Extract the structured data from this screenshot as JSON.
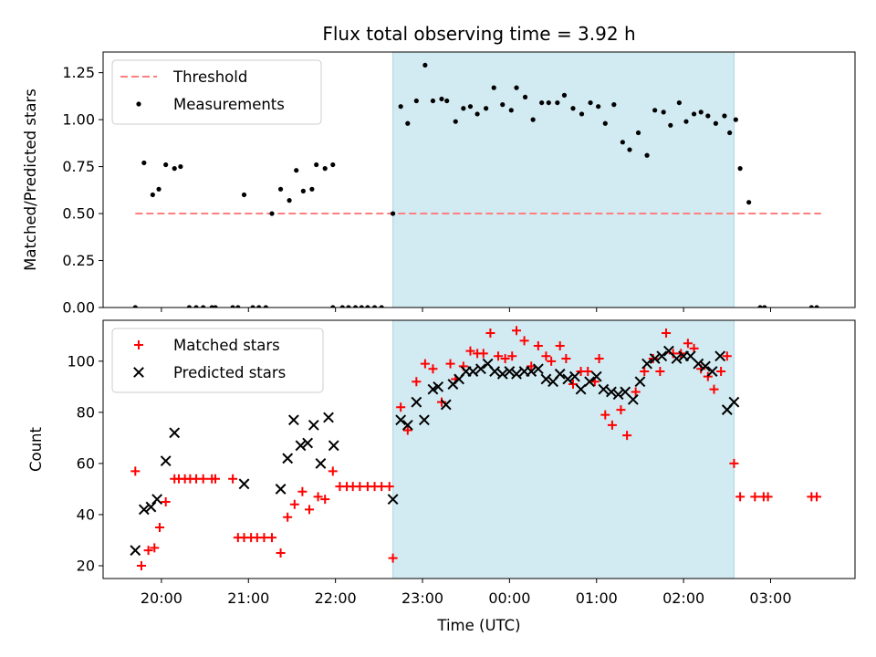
{
  "chart_data": {
    "title": "Flux total observing time = 3.92 h",
    "xlabel": "Time (UTC)",
    "x_ticks": [
      "20:00",
      "21:00",
      "22:00",
      "23:00",
      "00:00",
      "01:00",
      "02:00",
      "03:00"
    ],
    "x_tick_hours": [
      20,
      21,
      22,
      23,
      24,
      25,
      26,
      27
    ],
    "xlim": [
      19.33,
      27.97
    ],
    "shaded_span": {
      "start": 22.66,
      "end": 26.58,
      "color": "#add8e6"
    },
    "panels": [
      {
        "type": "scatter",
        "ylabel": "Matched/Predicted stars",
        "ylim": [
          0,
          1.36
        ],
        "yticks": [
          0.0,
          0.25,
          0.5,
          0.75,
          1.0,
          1.25
        ],
        "ytick_labels": [
          "0.00",
          "0.25",
          "0.50",
          "0.75",
          "1.00",
          "1.25"
        ],
        "legend": {
          "placement": "top-left",
          "entries": [
            "Threshold",
            "Measurements"
          ]
        },
        "series": [
          {
            "name": "Threshold",
            "kind": "line",
            "style": "dashed",
            "color": "#ff7f7f",
            "x": [
              19.7,
              27.58
            ],
            "y": [
              0.5,
              0.5
            ]
          },
          {
            "name": "Measurements",
            "kind": "dot",
            "color": "#000000",
            "x": [
              19.7,
              19.8,
              19.9,
              19.97,
              20.05,
              20.15,
              20.22,
              20.32,
              20.4,
              20.48,
              20.58,
              20.62,
              20.82,
              20.88,
              20.95,
              21.05,
              21.12,
              21.2,
              21.27,
              21.37,
              21.47,
              21.55,
              21.63,
              21.73,
              21.78,
              21.88,
              21.97,
              21.97,
              22.08,
              22.15,
              22.23,
              22.3,
              22.37,
              22.45,
              22.53,
              22.66,
              22.75,
              22.83,
              22.93,
              23.03,
              23.12,
              23.22,
              23.28,
              23.38,
              23.47,
              23.55,
              23.63,
              23.73,
              23.82,
              23.92,
              24.02,
              24.08,
              24.18,
              24.27,
              24.37,
              24.45,
              24.55,
              24.63,
              24.73,
              24.83,
              24.93,
              25.02,
              25.1,
              25.2,
              25.3,
              25.38,
              25.48,
              25.58,
              25.67,
              25.77,
              25.85,
              25.95,
              26.03,
              26.12,
              26.2,
              26.28,
              26.37,
              26.47,
              26.53,
              26.6,
              26.65,
              26.75,
              26.88,
              26.93,
              27.47,
              27.53
            ],
            "y": [
              0.0,
              0.77,
              0.6,
              0.63,
              0.76,
              0.74,
              0.75,
              0.0,
              0.0,
              0.0,
              0.0,
              0.0,
              0.0,
              0.0,
              0.6,
              0.0,
              0.0,
              0.0,
              0.5,
              0.63,
              0.57,
              0.73,
              0.62,
              0.63,
              0.76,
              0.74,
              0.76,
              0.0,
              0.0,
              0.0,
              0.0,
              0.0,
              0.0,
              0.0,
              0.0,
              0.5,
              1.07,
              0.98,
              1.1,
              1.29,
              1.1,
              1.11,
              1.1,
              0.99,
              1.06,
              1.07,
              1.03,
              1.06,
              1.17,
              1.08,
              1.05,
              1.17,
              1.12,
              1.0,
              1.09,
              1.09,
              1.09,
              1.13,
              1.06,
              1.03,
              1.09,
              1.07,
              0.98,
              1.08,
              0.88,
              0.84,
              0.93,
              0.81,
              1.05,
              1.04,
              0.97,
              1.09,
              0.99,
              1.03,
              1.04,
              1.02,
              0.98,
              1.02,
              0.93,
              1.0,
              0.74,
              0.56,
              0.0,
              0.0,
              0.0,
              0.0
            ]
          }
        ]
      },
      {
        "type": "scatter",
        "ylabel": "Count",
        "ylim": [
          15,
          116
        ],
        "yticks": [
          20,
          40,
          60,
          80,
          100
        ],
        "ytick_labels": [
          "20",
          "40",
          "60",
          "80",
          "100"
        ],
        "legend": {
          "placement": "top-left",
          "entries": [
            "Matched stars",
            "Predicted stars"
          ]
        },
        "series": [
          {
            "name": "Matched stars",
            "kind": "plus",
            "color": "#ff0000",
            "x": [
              19.7,
              19.77,
              19.85,
              19.92,
              19.98,
              20.05,
              20.15,
              20.2,
              20.27,
              20.33,
              20.4,
              20.48,
              20.58,
              20.62,
              20.82,
              20.88,
              20.95,
              21.03,
              21.1,
              21.18,
              21.27,
              21.37,
              21.45,
              21.53,
              21.62,
              21.7,
              21.8,
              21.88,
              21.97,
              22.05,
              22.13,
              22.2,
              22.28,
              22.37,
              22.45,
              22.53,
              22.62,
              22.66,
              22.75,
              22.83,
              22.93,
              23.03,
              23.12,
              23.22,
              23.32,
              23.38,
              23.47,
              23.55,
              23.63,
              23.7,
              23.78,
              23.87,
              23.95,
              24.03,
              24.08,
              24.17,
              24.25,
              24.33,
              24.42,
              24.48,
              24.58,
              24.65,
              24.73,
              24.82,
              24.9,
              24.98,
              25.03,
              25.1,
              25.18,
              25.28,
              25.35,
              25.45,
              25.55,
              25.65,
              25.73,
              25.8,
              25.88,
              25.97,
              26.05,
              26.12,
              26.2,
              26.28,
              26.35,
              26.43,
              26.5,
              26.58,
              26.65,
              26.82,
              26.92,
              26.97,
              27.47,
              27.53
            ],
            "y": [
              57,
              20,
              26,
              27,
              35,
              45,
              54,
              54,
              54,
              54,
              54,
              54,
              54,
              54,
              54,
              31,
              31,
              31,
              31,
              31,
              31,
              25,
              39,
              44,
              49,
              42,
              47,
              46,
              57,
              51,
              51,
              51,
              51,
              51,
              51,
              51,
              51,
              23,
              82,
              73,
              92,
              99,
              97,
              84,
              99,
              93,
              98,
              104,
              103,
              103,
              111,
              102,
              101,
              102,
              112,
              108,
              98,
              106,
              102,
              100,
              106,
              101,
              91,
              96,
              96,
              92,
              101,
              79,
              75,
              81,
              71,
              88,
              96,
              101,
              96,
              111,
              103,
              103,
              107,
              105,
              97,
              94,
              89,
              96,
              102,
              60,
              47,
              47,
              47,
              47,
              47,
              47
            ]
          },
          {
            "name": "Predicted stars",
            "kind": "x",
            "color": "#000000",
            "x": [
              19.7,
              19.8,
              19.88,
              19.95,
              20.05,
              20.15,
              20.95,
              21.37,
              21.45,
              21.52,
              21.6,
              21.68,
              21.75,
              21.83,
              21.92,
              21.98,
              22.66,
              22.75,
              22.83,
              22.93,
              23.02,
              23.12,
              23.18,
              23.27,
              23.35,
              23.42,
              23.5,
              23.58,
              23.67,
              23.75,
              23.83,
              23.92,
              24.0,
              24.08,
              24.17,
              24.25,
              24.33,
              24.42,
              24.5,
              24.58,
              24.67,
              24.75,
              24.82,
              24.92,
              25.0,
              25.08,
              25.17,
              25.25,
              25.33,
              25.42,
              25.5,
              25.58,
              25.67,
              25.75,
              25.83,
              25.92,
              26.0,
              26.08,
              26.17,
              26.25,
              26.33,
              26.42,
              26.5,
              26.58
            ],
            "y": [
              26,
              42,
              43,
              46,
              61,
              72,
              52,
              50,
              62,
              77,
              67,
              68,
              75,
              60,
              78,
              67,
              46,
              77,
              75,
              84,
              77,
              89,
              90,
              83,
              91,
              93,
              96,
              96,
              97,
              99,
              96,
              95,
              96,
              95,
              96,
              96,
              97,
              93,
              92,
              95,
              93,
              94,
              89,
              92,
              94,
              89,
              88,
              87,
              88,
              85,
              92,
              99,
              101,
              102,
              104,
              101,
              102,
              102,
              99,
              98,
              96,
              102,
              81,
              84
            ]
          }
        ]
      }
    ]
  }
}
